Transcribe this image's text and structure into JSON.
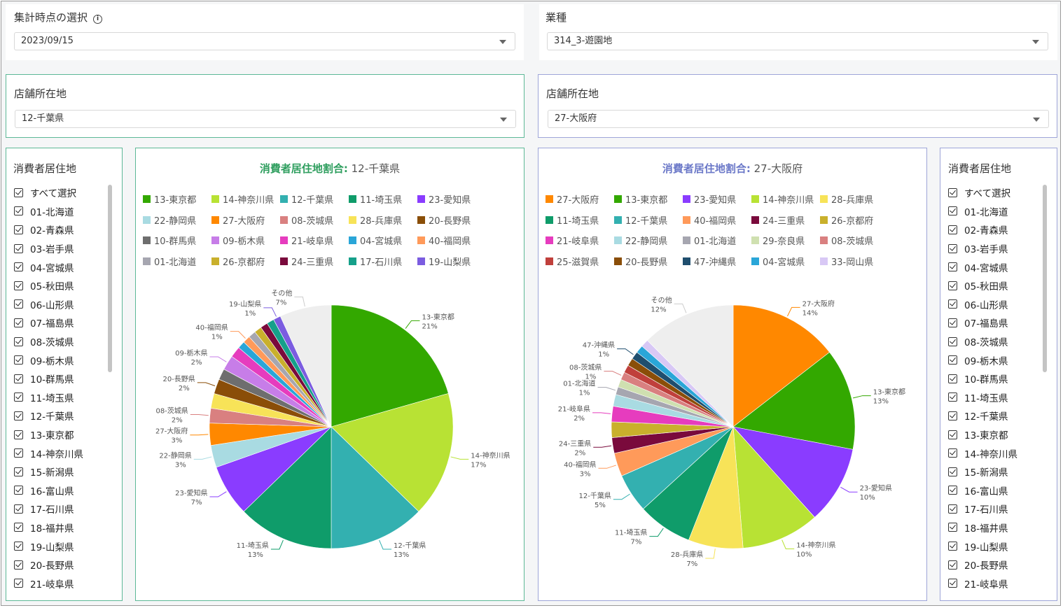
{
  "top_left": {
    "label": "集計時点の選択",
    "value": "2023/09/15"
  },
  "top_right": {
    "label": "業種",
    "value": "314_3-遊園地"
  },
  "store_left": {
    "label": "店舗所在地",
    "value": "12-千葉県"
  },
  "store_right": {
    "label": "店舗所在地",
    "value": "27-大阪府"
  },
  "consumer_left": {
    "title": "消費者居住地"
  },
  "consumer_right": {
    "title": "消費者居住地"
  },
  "checkbox_items": [
    "すべて選択",
    "01-北海道",
    "02-青森県",
    "03-岩手県",
    "04-宮城県",
    "05-秋田県",
    "06-山形県",
    "07-福島県",
    "08-茨城県",
    "09-栃木県",
    "10-群馬県",
    "11-埼玉県",
    "12-千葉県",
    "13-東京都",
    "14-神奈川県",
    "15-新潟県",
    "16-富山県",
    "17-石川県",
    "18-福井県",
    "19-山梨県",
    "20-長野県",
    "21-岐阜県"
  ],
  "chart_left_header": {
    "title_bold": "消費者居住地割合:",
    "title_rest": " 12-千葉県"
  },
  "chart_right_header": {
    "title_bold": "消費者居住地割合:",
    "title_rest": " 27-大阪府"
  },
  "colors": {
    "accent_green": "#2e9e5e",
    "accent_blue": "#6b78c8"
  },
  "chart_data": [
    {
      "type": "pie",
      "title": "消費者居住地割合: 12-千葉県",
      "legend": [
        {
          "name": "13-東京都",
          "color": "#33a800"
        },
        {
          "name": "14-神奈川県",
          "color": "#b8e234"
        },
        {
          "name": "12-千葉県",
          "color": "#33b0b0"
        },
        {
          "name": "11-埼玉県",
          "color": "#0f9c6a"
        },
        {
          "name": "23-愛知県",
          "color": "#8a3cff"
        },
        {
          "name": "22-静岡県",
          "color": "#a9dbe2"
        },
        {
          "name": "27-大阪府",
          "color": "#ff8800"
        },
        {
          "name": "08-茨城県",
          "color": "#d98080"
        },
        {
          "name": "28-兵庫県",
          "color": "#f7e358"
        },
        {
          "name": "20-長野県",
          "color": "#8a4e08"
        },
        {
          "name": "10-群馬県",
          "color": "#6e6e6e"
        },
        {
          "name": "09-栃木県",
          "color": "#c77de8"
        },
        {
          "name": "21-岐阜県",
          "color": "#e63cbe"
        },
        {
          "name": "04-宮城県",
          "color": "#2aa6d8"
        },
        {
          "name": "40-福岡県",
          "color": "#ff9a5a"
        },
        {
          "name": "01-北海道",
          "color": "#a6a6b0"
        },
        {
          "name": "26-京都府",
          "color": "#c9b02c"
        },
        {
          "name": "24-三重県",
          "color": "#7a0a3c"
        },
        {
          "name": "17-石川県",
          "color": "#15a08a"
        },
        {
          "name": "19-山梨県",
          "color": "#7b5ce0"
        }
      ],
      "slices": [
        {
          "name": "13-東京都",
          "pct": 21,
          "color": "#33a800",
          "label": true
        },
        {
          "name": "14-神奈川県",
          "pct": 17,
          "color": "#b8e234",
          "label": true
        },
        {
          "name": "12-千葉県",
          "pct": 13,
          "color": "#33b0b0",
          "label": true
        },
        {
          "name": "11-埼玉県",
          "pct": 13,
          "color": "#0f9c6a",
          "label": true
        },
        {
          "name": "23-愛知県",
          "pct": 7,
          "color": "#8a3cff",
          "label": true
        },
        {
          "name": "22-静岡県",
          "pct": 3,
          "color": "#a9dbe2",
          "label": true
        },
        {
          "name": "27-大阪府",
          "pct": 3,
          "color": "#ff8800",
          "label": true
        },
        {
          "name": "08-茨城県",
          "pct": 2,
          "color": "#d98080",
          "label": true
        },
        {
          "name": "28-兵庫県",
          "pct": 2,
          "color": "#f7e358",
          "label": false
        },
        {
          "name": "20-長野県",
          "pct": 2,
          "color": "#8a4e08",
          "label": true
        },
        {
          "name": "10-群馬県",
          "pct": 1.5,
          "color": "#6e6e6e",
          "label": false
        },
        {
          "name": "09-栃木県",
          "pct": 2,
          "color": "#c77de8",
          "label": true
        },
        {
          "name": "21-岐阜県",
          "pct": 1.5,
          "color": "#e63cbe",
          "label": false
        },
        {
          "name": "04-宮城県",
          "pct": 1,
          "color": "#2aa6d8",
          "label": false
        },
        {
          "name": "40-福岡県",
          "pct": 1,
          "color": "#ff9a5a",
          "label": true
        },
        {
          "name": "01-北海道",
          "pct": 1,
          "color": "#a6a6b0",
          "label": false
        },
        {
          "name": "26-京都府",
          "pct": 1,
          "color": "#c9b02c",
          "label": false
        },
        {
          "name": "24-三重県",
          "pct": 1,
          "color": "#7a0a3c",
          "label": false
        },
        {
          "name": "17-石川県",
          "pct": 1,
          "color": "#15a08a",
          "label": false
        },
        {
          "name": "19-山梨県",
          "pct": 1,
          "color": "#7b5ce0",
          "label": true
        },
        {
          "name": "その他",
          "pct": 7,
          "color": "#eeeeee",
          "label": true
        }
      ]
    },
    {
      "type": "pie",
      "title": "消費者居住地割合: 27-大阪府",
      "legend": [
        {
          "name": "27-大阪府",
          "color": "#ff8800"
        },
        {
          "name": "13-東京都",
          "color": "#33a800"
        },
        {
          "name": "23-愛知県",
          "color": "#8a3cff"
        },
        {
          "name": "14-神奈川県",
          "color": "#b8e234"
        },
        {
          "name": "28-兵庫県",
          "color": "#f7e358"
        },
        {
          "name": "11-埼玉県",
          "color": "#0f9c6a"
        },
        {
          "name": "12-千葉県",
          "color": "#33b0b0"
        },
        {
          "name": "40-福岡県",
          "color": "#ff9a5a"
        },
        {
          "name": "24-三重県",
          "color": "#7a0a3c"
        },
        {
          "name": "26-京都府",
          "color": "#c9b02c"
        },
        {
          "name": "21-岐阜県",
          "color": "#e63cbe"
        },
        {
          "name": "22-静岡県",
          "color": "#a9dbe2"
        },
        {
          "name": "01-北海道",
          "color": "#a6a6b0"
        },
        {
          "name": "29-奈良県",
          "color": "#cfe0b0"
        },
        {
          "name": "08-茨城県",
          "color": "#d98080"
        },
        {
          "name": "25-滋賀県",
          "color": "#c0403c"
        },
        {
          "name": "20-長野県",
          "color": "#8a4e08"
        },
        {
          "name": "47-沖縄県",
          "color": "#1f4e6e"
        },
        {
          "name": "04-宮城県",
          "color": "#2aa6d8"
        },
        {
          "name": "33-岡山県",
          "color": "#d8c8f5"
        }
      ],
      "slices": [
        {
          "name": "27-大阪府",
          "pct": 14,
          "color": "#ff8800",
          "label": true
        },
        {
          "name": "13-東京都",
          "pct": 13,
          "color": "#33a800",
          "label": true
        },
        {
          "name": "23-愛知県",
          "pct": 10,
          "color": "#8a3cff",
          "label": true
        },
        {
          "name": "14-神奈川県",
          "pct": 10,
          "color": "#b8e234",
          "label": true
        },
        {
          "name": "28-兵庫県",
          "pct": 7,
          "color": "#f7e358",
          "label": true
        },
        {
          "name": "11-埼玉県",
          "pct": 7,
          "color": "#0f9c6a",
          "label": true
        },
        {
          "name": "12-千葉県",
          "pct": 5,
          "color": "#33b0b0",
          "label": true
        },
        {
          "name": "40-福岡県",
          "pct": 3,
          "color": "#ff9a5a",
          "label": true
        },
        {
          "name": "24-三重県",
          "pct": 2,
          "color": "#7a0a3c",
          "label": true
        },
        {
          "name": "26-京都府",
          "pct": 2,
          "color": "#c9b02c",
          "label": false
        },
        {
          "name": "21-岐阜県",
          "pct": 2,
          "color": "#e63cbe",
          "label": true
        },
        {
          "name": "22-静岡県",
          "pct": 1.5,
          "color": "#a9dbe2",
          "label": false
        },
        {
          "name": "01-北海道",
          "pct": 1,
          "color": "#a6a6b0",
          "label": true
        },
        {
          "name": "29-奈良県",
          "pct": 1,
          "color": "#cfe0b0",
          "label": false
        },
        {
          "name": "08-茨城県",
          "pct": 1,
          "color": "#d98080",
          "label": true
        },
        {
          "name": "25-滋賀県",
          "pct": 1,
          "color": "#c0403c",
          "label": false
        },
        {
          "name": "20-長野県",
          "pct": 1,
          "color": "#8a4e08",
          "label": false
        },
        {
          "name": "47-沖縄県",
          "pct": 1,
          "color": "#1f4e6e",
          "label": true
        },
        {
          "name": "04-宮城県",
          "pct": 1,
          "color": "#2aa6d8",
          "label": false
        },
        {
          "name": "33-岡山県",
          "pct": 1,
          "color": "#d8c8f5",
          "label": false
        },
        {
          "name": "その他",
          "pct": 12,
          "color": "#eeeeee",
          "label": true
        }
      ]
    }
  ]
}
